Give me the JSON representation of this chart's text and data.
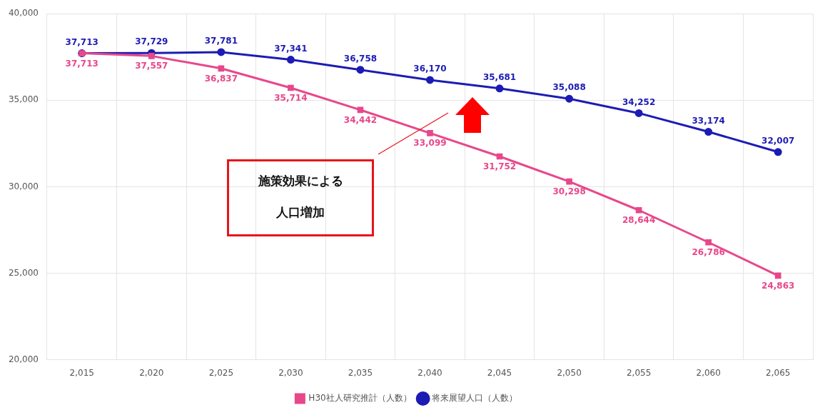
{
  "chart_data": {
    "type": "line",
    "categories": [
      "2,015",
      "2,020",
      "2,025",
      "2,030",
      "2,035",
      "2,040",
      "2,045",
      "2,050",
      "2,055",
      "2,060",
      "2,065"
    ],
    "series": [
      {
        "name": "H30社人研究推計（人数）",
        "color": "#e8478b",
        "marker": "square",
        "values": [
          37713,
          37557,
          36837,
          35714,
          34442,
          33099,
          31752,
          30298,
          28644,
          26786,
          24863
        ],
        "value_labels": [
          "37,713",
          "37,557",
          "36,837",
          "35,714",
          "34,442",
          "33,099",
          "31,752",
          "30,298",
          "28,644",
          "26,786",
          "24,863"
        ]
      },
      {
        "name": "将来展望人口（人数）",
        "color": "#1c1cb4",
        "marker": "circle",
        "values": [
          37713,
          37729,
          37781,
          37341,
          36758,
          36170,
          35681,
          35088,
          34252,
          33174,
          32007
        ],
        "value_labels": [
          "37,713",
          "37,729",
          "37,781",
          "37,341",
          "36,758",
          "36,170",
          "35,681",
          "35,088",
          "34,252",
          "33,174",
          "32,007"
        ]
      }
    ],
    "ylim": [
      20000,
      40000
    ],
    "yticks": [
      {
        "value": 20000,
        "label": "20,000"
      },
      {
        "value": 25000,
        "label": "25,000"
      },
      {
        "value": 30000,
        "label": "30,000"
      },
      {
        "value": 35000,
        "label": "35,000"
      },
      {
        "value": 40000,
        "label": "40,000"
      }
    ],
    "grid": true,
    "legend": "bottom",
    "line_style": "solid",
    "annotations": [
      "施策効果による人口増加"
    ]
  }
}
